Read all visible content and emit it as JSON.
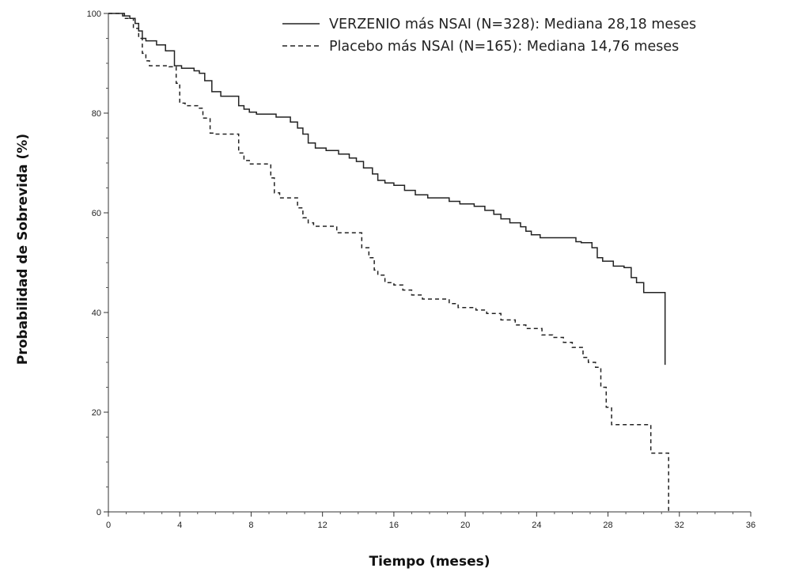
{
  "chart_data": {
    "type": "line",
    "xlabel": "Tiempo (meses)",
    "ylabel": "Probabilidad de Sobrevida (%)",
    "xlim": [
      0,
      36
    ],
    "ylim": [
      0,
      100
    ],
    "xticks": [
      0,
      4,
      8,
      12,
      16,
      20,
      24,
      28,
      32,
      36
    ],
    "yticks": [
      0,
      20,
      40,
      60,
      80,
      100
    ],
    "grid": false,
    "legend_position": "top-right",
    "series": [
      {
        "name": "VERZENIO más NSAI (N=328): Mediana 28,18 meses",
        "style": "solid",
        "color": "#222222",
        "x": [
          0,
          0.8,
          1.2,
          1.5,
          1.7,
          1.9,
          2.1,
          2.7,
          3.2,
          3.7,
          4.1,
          4.8,
          5.1,
          5.4,
          5.8,
          6.3,
          7.3,
          7.6,
          7.9,
          8.3,
          9.4,
          10.2,
          10.6,
          10.9,
          11.2,
          11.6,
          12.2,
          12.9,
          13.5,
          13.9,
          14.3,
          14.8,
          15.1,
          15.5,
          16.0,
          16.6,
          17.2,
          17.9,
          19.1,
          19.7,
          20.5,
          21.1,
          21.6,
          22.0,
          22.5,
          23.1,
          23.4,
          23.7,
          24.2,
          26.2,
          26.5,
          27.1,
          27.4,
          27.7,
          28.3,
          28.9,
          29.3,
          29.6,
          30.0,
          31.1,
          31.2
        ],
        "y": [
          100,
          99.5,
          99,
          98,
          96.5,
          95,
          94.5,
          93.7,
          92.5,
          89.5,
          89,
          88.5,
          88,
          86.5,
          84.3,
          83.4,
          81.5,
          80.8,
          80.2,
          79.8,
          79.2,
          78.2,
          77,
          75.8,
          74,
          73,
          72.5,
          71.8,
          71,
          70.3,
          69,
          67.8,
          66.5,
          66,
          65.5,
          64.5,
          63.6,
          63,
          62.3,
          61.8,
          61.3,
          60.5,
          59.7,
          58.8,
          58,
          57.2,
          56.3,
          55.6,
          55,
          54.2,
          54,
          53,
          51,
          50.3,
          49.3,
          49,
          47,
          46,
          44,
          44,
          29.5
        ]
      },
      {
        "name": "Placebo más NSAI (N=165): Mediana 14,76 meses",
        "style": "dashed",
        "color": "#222222",
        "x": [
          0,
          0.9,
          1.4,
          1.7,
          1.9,
          2.1,
          2.3,
          3.4,
          3.8,
          4.0,
          4.3,
          5.0,
          5.3,
          5.7,
          6.0,
          7.3,
          7.6,
          7.9,
          9.1,
          9.3,
          9.6,
          10.6,
          10.9,
          11.2,
          11.5,
          12.8,
          14.2,
          14.6,
          14.9,
          15.1,
          15.5,
          16.0,
          16.5,
          17.0,
          17.6,
          19.1,
          19.6,
          20.6,
          21.2,
          22.0,
          22.8,
          23.4,
          24.3,
          24.9,
          25.5,
          26.0,
          26.6,
          26.9,
          27.3,
          27.6,
          27.9,
          28.2,
          29.9,
          30.4,
          31.3,
          31.4
        ],
        "y": [
          100,
          99,
          97,
          95,
          92,
          90.5,
          89.5,
          89.3,
          86,
          82,
          81.5,
          81,
          79,
          76,
          75.8,
          72,
          70.5,
          69.8,
          67,
          64,
          63,
          61,
          59,
          58,
          57.3,
          56,
          53,
          51,
          48.5,
          47.5,
          46,
          45.5,
          44.5,
          43.5,
          42.7,
          41.8,
          41,
          40.5,
          39.8,
          38.5,
          37.5,
          36.8,
          35.5,
          35,
          34,
          33,
          31,
          30,
          29,
          25,
          21,
          17.5,
          17.5,
          11.8,
          11.8,
          0
        ]
      }
    ]
  }
}
